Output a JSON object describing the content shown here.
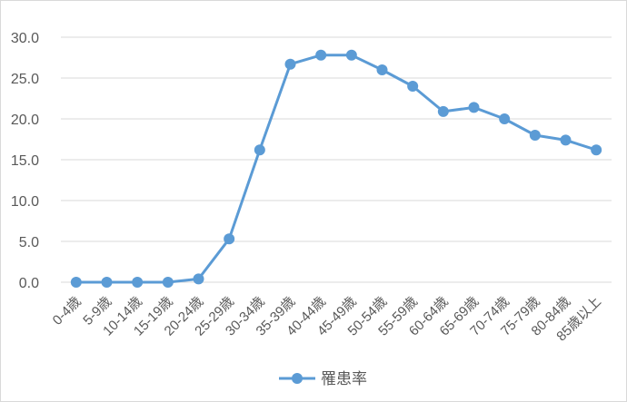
{
  "chart_data": {
    "type": "line",
    "categories": [
      "0-4歳",
      "5-9歳",
      "10-14歳",
      "15-19歳",
      "20-24歳",
      "25-29歳",
      "30-34歳",
      "35-39歳",
      "40-44歳",
      "45-49歳",
      "50-54歳",
      "55-59歳",
      "60-64歳",
      "65-69歳",
      "70-74歳",
      "75-79歳",
      "80-84歳",
      "85歳以上"
    ],
    "series": [
      {
        "name": "罹患率",
        "values": [
          0.0,
          0.0,
          0.0,
          0.0,
          0.4,
          5.3,
          16.2,
          26.7,
          27.8,
          27.8,
          26.0,
          24.0,
          20.9,
          21.4,
          20.0,
          18.0,
          17.4,
          16.2
        ]
      }
    ],
    "yticks": [
      "0.0",
      "5.0",
      "10.0",
      "15.0",
      "20.0",
      "25.0",
      "30.0"
    ],
    "ylim": [
      0,
      30
    ],
    "grid": true,
    "legend_position": "bottom",
    "colors": {
      "series": "#5b9bd5",
      "grid": "#d9d9d9",
      "text": "#595959"
    }
  }
}
